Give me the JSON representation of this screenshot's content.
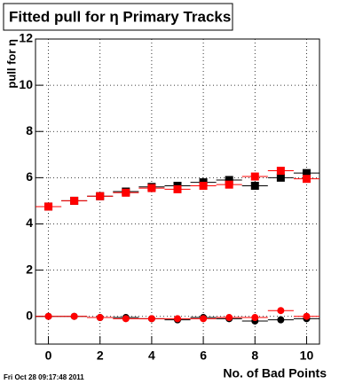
{
  "chart_data": {
    "type": "scatter",
    "title": "Fitted pull for  η Primary Tracks",
    "y_label": "pull for η",
    "x_label": "No. of Bad Points",
    "footer": "Fri Oct 28 09:17:48 2011",
    "x": [
      0,
      1,
      2,
      3,
      4,
      5,
      6,
      7,
      8,
      9,
      10
    ],
    "x_error": 0.5,
    "series": [
      {
        "color": "#000000",
        "marker": "square",
        "values": [
          4.75,
          5.0,
          5.2,
          5.4,
          5.6,
          5.65,
          5.8,
          5.9,
          5.65,
          6.0,
          6.2
        ]
      },
      {
        "color": "#ff0000",
        "marker": "square",
        "values": [
          4.75,
          5.0,
          5.2,
          5.35,
          5.55,
          5.5,
          5.65,
          5.7,
          6.05,
          6.3,
          5.95
        ]
      },
      {
        "color": "#000000",
        "marker": "circle",
        "values": [
          0,
          0,
          -0.05,
          -0.05,
          -0.1,
          -0.15,
          -0.05,
          -0.1,
          -0.2,
          -0.15,
          -0.1
        ]
      },
      {
        "color": "#ff0000",
        "marker": "circle",
        "values": [
          0,
          0,
          -0.05,
          -0.1,
          -0.1,
          -0.1,
          -0.1,
          -0.05,
          -0.05,
          0.25,
          0.0
        ]
      }
    ],
    "xlim": [
      -0.5,
      10.5
    ],
    "xticks": [
      0,
      2,
      4,
      6,
      8,
      10
    ],
    "ylim": [
      -1.2,
      12
    ],
    "yticks": [
      0,
      2,
      4,
      6,
      8,
      10,
      12
    ],
    "grid": true
  }
}
